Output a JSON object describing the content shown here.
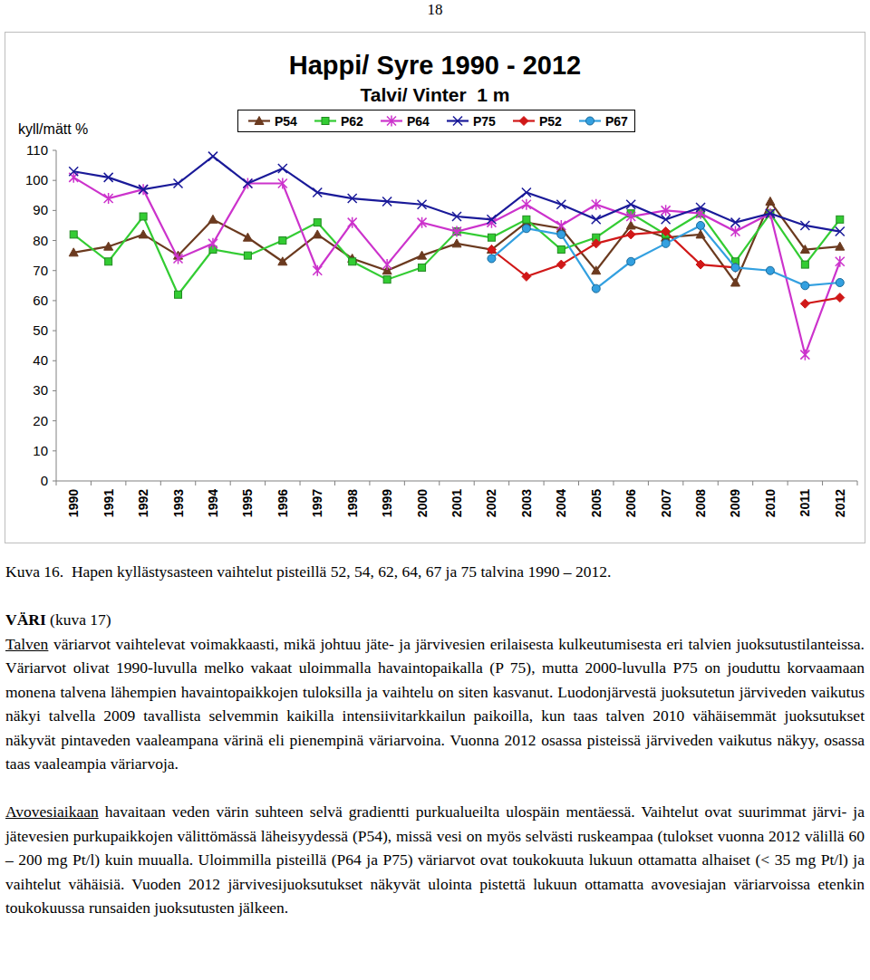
{
  "page_number": "18",
  "chart_data": {
    "type": "line",
    "title": "Happi/ Syre 1990 - 2012",
    "subtitle": "Talvi/ Vinter  1 m",
    "y_label": "kyll/mätt %",
    "categories": [
      "1990",
      "1991",
      "1992",
      "1993",
      "1994",
      "1995",
      "1996",
      "1997",
      "1998",
      "1999",
      "2000",
      "2001",
      "2002",
      "2003",
      "2004",
      "2005",
      "2006",
      "2007",
      "2008",
      "2009",
      "2010",
      "2011",
      "2012"
    ],
    "series": [
      {
        "name": "P54",
        "color": "#6b3a1f",
        "marker": "triangle",
        "values": [
          76,
          78,
          82,
          75,
          87,
          81,
          73,
          82,
          74,
          70,
          75,
          79,
          77,
          86,
          84,
          70,
          85,
          81,
          82,
          66,
          93,
          77,
          78
        ]
      },
      {
        "name": "P62",
        "color": "#33cc33",
        "marker": "square",
        "values": [
          82,
          73,
          88,
          62,
          77,
          75,
          80,
          86,
          73,
          67,
          71,
          83,
          81,
          87,
          77,
          81,
          89,
          82,
          89,
          73,
          89,
          72,
          87
        ]
      },
      {
        "name": "P64",
        "color": "#cc33cc",
        "marker": "star",
        "values": [
          101,
          94,
          97,
          74,
          79,
          99,
          99,
          70,
          86,
          72,
          86,
          83,
          86,
          92,
          85,
          92,
          88,
          90,
          89,
          83,
          89,
          42,
          73
        ]
      },
      {
        "name": "P75",
        "color": "#1a1a99",
        "marker": "x",
        "values": [
          103,
          101,
          97,
          99,
          108,
          99,
          104,
          96,
          94,
          93,
          92,
          88,
          87,
          96,
          92,
          87,
          92,
          87,
          91,
          86,
          89,
          85,
          83
        ]
      },
      {
        "name": "P52",
        "color": "#d01818",
        "marker": "diamond",
        "values": [
          null,
          null,
          null,
          null,
          null,
          null,
          null,
          null,
          null,
          null,
          null,
          null,
          77,
          68,
          72,
          79,
          82,
          83,
          72,
          71,
          null,
          59,
          61
        ]
      },
      {
        "name": "P67",
        "color": "#33a0e0",
        "marker": "circle",
        "values": [
          null,
          null,
          null,
          null,
          null,
          null,
          null,
          null,
          null,
          null,
          null,
          null,
          74,
          84,
          82,
          64,
          73,
          79,
          85,
          71,
          70,
          65,
          66
        ]
      }
    ],
    "ylim": [
      0,
      110
    ],
    "yticks": [
      0,
      10,
      20,
      30,
      40,
      50,
      60,
      70,
      80,
      90,
      100,
      110
    ],
    "grid": false,
    "legend": "top"
  },
  "caption": "Kuva 16.  Hapen kyllästysasteen vaihtelut pisteillä 52, 54, 62, 64, 67 ja 75 talvina 1990 – 2012.",
  "heading": {
    "bold": "VÄRI",
    "rest": " (kuva 17)"
  },
  "paragraphs": [
    {
      "lead": "Talven",
      "text": " väriarvot vaihtelevat voimakkaasti, mikä johtuu jäte- ja järvivesien erilaisesta kulkeutumisesta eri talvien juoksutustilanteissa. Väriarvot olivat 1990-luvulla melko vakaat uloimmalla havaintopaikalla (P 75), mutta 2000-luvulla P75 on jouduttu korvaamaan monena talvena lähempien havaintopaikkojen tuloksilla ja vaihtelu on siten kasvanut. Luodonjärvestä juoksutetun järviveden vaikutus näkyi talvella 2009 tavallista selvemmin kaikilla intensiivitarkkailun paikoilla, kun taas talven 2010 vähäisemmät juoksutukset näkyvät pintaveden vaaleampana värinä eli pienempinä väriarvoina. Vuonna 2012 osassa pisteissä järviveden vaikutus näkyy, osassa taas vaaleampia väriarvoja."
    },
    {
      "lead": "Avovesiaikaan",
      "text": " havaitaan veden värin suhteen selvä gradientti purkualueilta ulospäin mentäessä. Vaihtelut ovat suurimmat järvi- ja jätevesien purkupaikkojen välittömässä läheisyydessä (P54), missä vesi on myös selvästi ruskeampaa (tulokset vuonna 2012 välillä 60 – 200 mg Pt/l) kuin muualla. Uloimmilla pisteillä (P64 ja P75) väriarvot ovat toukokuuta lukuun ottamatta alhaiset (< 35 mg Pt/l) ja vaihtelut vähäisiä. Vuoden 2012 järvivesijuoksutukset näkyvät ulointa pistettä lukuun ottamatta avovesiajan väriarvoissa etenkin toukokuussa runsaiden juoksutusten jälkeen."
    }
  ]
}
